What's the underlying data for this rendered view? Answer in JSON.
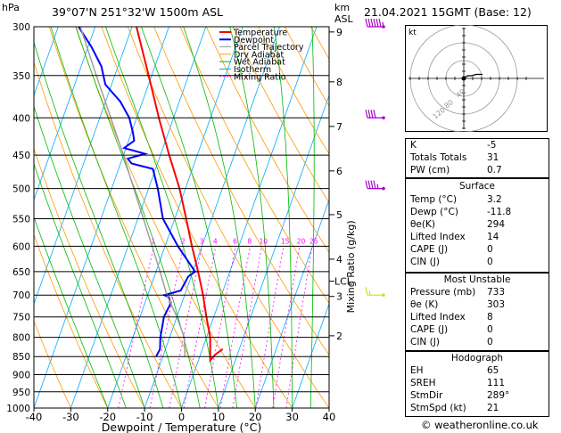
{
  "header": {
    "p_unit": "hPa",
    "location": "39°07'N  251°32'W  1500m  ASL",
    "alt_unit": "km",
    "alt_sub": "ASL",
    "datetime": "21.04.2021  15GMT  (Base: 12)"
  },
  "legend": [
    "Temperature",
    "Dewpoint",
    "Parcel Trajectory",
    "Dry Adiabat",
    "Wet Adiabat",
    "Isotherm",
    "Mixing Ratio"
  ],
  "colors": {
    "temperature": "#ff0000",
    "dewpoint": "#0000ff",
    "parcel": "#999999",
    "dry_adiabat": "#ff9900",
    "wet_adiabat": "#00bb00",
    "isotherm": "#00aaff",
    "mixing_ratio": "#ff00ff",
    "wind": "#aa00cc",
    "wind_low": "#ccdd33"
  },
  "chart_data": {
    "type": "line",
    "xlabel": "Dewpoint / Temperature (°C)",
    "ylabel": "hPa",
    "right_label": "Mixing Ratio (g/kg)",
    "xlim": [
      -40,
      40
    ],
    "ylim": [
      1000,
      300
    ],
    "skew_degC_per_decade": 70,
    "x_ticks": [
      "-40",
      "-30",
      "-20",
      "-10",
      "0",
      "10",
      "20",
      "30",
      "40"
    ],
    "pressure_ticks": [
      "300",
      "350",
      "400",
      "450",
      "500",
      "550",
      "600",
      "650",
      "700",
      "750",
      "800",
      "850",
      "900",
      "950",
      "1000"
    ],
    "km_ticks": [
      {
        "label": "9",
        "p": 305
      },
      {
        "label": "8",
        "p": 357
      },
      {
        "label": "7",
        "p": 411
      },
      {
        "label": "6",
        "p": 473
      },
      {
        "label": "5",
        "p": 543
      },
      {
        "label": "4",
        "p": 625
      },
      {
        "label": "3",
        "p": 703
      },
      {
        "label": "2",
        "p": 796
      }
    ],
    "lcl": {
      "label": "LCL",
      "p": 670
    },
    "mixing_ratio_labels": [
      {
        "w": 1,
        "label": "1"
      },
      {
        "w": 2,
        "label": "2"
      },
      {
        "w": 3,
        "label": "3"
      },
      {
        "w": 4,
        "label": "4"
      },
      {
        "w": 6,
        "label": "6"
      },
      {
        "w": 8,
        "label": "8"
      },
      {
        "w": 10,
        "label": "10"
      },
      {
        "w": 15,
        "label": "15"
      },
      {
        "w": 20,
        "label": "20"
      },
      {
        "w": 25,
        "label": "25"
      }
    ],
    "series": [
      {
        "key": "temperature",
        "p": [
          830,
          845,
          860,
          800,
          750,
          700,
          650,
          600,
          550,
          500,
          450,
          400,
          350,
          300
        ],
        "t": [
          5.5,
          4.0,
          3.2,
          1.0,
          -2.0,
          -5.0,
          -8.6,
          -12.7,
          -16.9,
          -21.6,
          -27.6,
          -34.0,
          -40.8,
          -48.8
        ]
      },
      {
        "key": "dewpoint",
        "p": [
          850,
          830,
          800,
          750,
          720,
          705,
          700,
          690,
          660,
          650,
          600,
          550,
          500,
          470,
          462,
          455,
          448,
          440,
          430,
          420,
          400,
          380,
          360,
          340,
          320,
          300
        ],
        "t": [
          -11.8,
          -11.5,
          -12.5,
          -13.5,
          -13.0,
          -14.0,
          -15.5,
          -11.5,
          -10.8,
          -9.4,
          -16.5,
          -23.2,
          -27.5,
          -30.7,
          -37,
          -38.5,
          -34.3,
          -40.5,
          -38.5,
          -39.5,
          -42.0,
          -46.0,
          -51.7,
          -54.5,
          -59.0,
          -64.5
        ]
      },
      {
        "key": "parcel",
        "p": [
          850,
          800,
          750,
          700,
          650,
          600,
          550,
          500,
          450,
          400,
          350,
          300
        ],
        "t": [
          -4.0,
          -6.0,
          -10.0,
          -14.8,
          -18.9,
          -23.5,
          -28.5,
          -34.0,
          -40.0,
          -47.0,
          -55.0,
          -64.0
        ]
      }
    ],
    "wind_barbs": [
      {
        "p": 300,
        "dir": 260,
        "spd": 55
      },
      {
        "p": 400,
        "dir": 260,
        "spd": 40
      },
      {
        "p": 500,
        "dir": 260,
        "spd": 35
      },
      {
        "p": 700,
        "dir": 220,
        "spd": 5
      }
    ]
  },
  "hodograph": {
    "label": "kt",
    "rings": [
      "40",
      "80",
      "120"
    ],
    "points_u": [
      0,
      1,
      3,
      6,
      9,
      14
    ],
    "points_v": [
      0,
      1,
      2,
      2,
      3,
      3
    ]
  },
  "indices": {
    "rows": [
      {
        "k": "K",
        "v": "-5"
      },
      {
        "k": "Totals Totals",
        "v": "31"
      },
      {
        "k": "PW (cm)",
        "v": "0.7"
      }
    ],
    "surface_title": "Surface",
    "surface": [
      {
        "k": "Temp (°C)",
        "v": "3.2"
      },
      {
        "k": "Dewp (°C)",
        "v": "-11.8"
      },
      {
        "k": "θe(K)",
        "v": "294"
      },
      {
        "k": "Lifted Index",
        "v": "14"
      },
      {
        "k": "CAPE (J)",
        "v": "0"
      },
      {
        "k": "CIN (J)",
        "v": "0"
      }
    ],
    "unstable_title": "Most Unstable",
    "unstable": [
      {
        "k": "Pressure (mb)",
        "v": "733"
      },
      {
        "k": "θe (K)",
        "v": "303"
      },
      {
        "k": "Lifted Index",
        "v": "8"
      },
      {
        "k": "CAPE (J)",
        "v": "0"
      },
      {
        "k": "CIN (J)",
        "v": "0"
      }
    ],
    "hodo_title": "Hodograph",
    "hodo": [
      {
        "k": "EH",
        "v": "65"
      },
      {
        "k": "SREH",
        "v": "111"
      },
      {
        "k": "StmDir",
        "v": "289°"
      },
      {
        "k": "StmSpd (kt)",
        "v": "21"
      }
    ]
  },
  "footer": "© weatheronline.co.uk"
}
